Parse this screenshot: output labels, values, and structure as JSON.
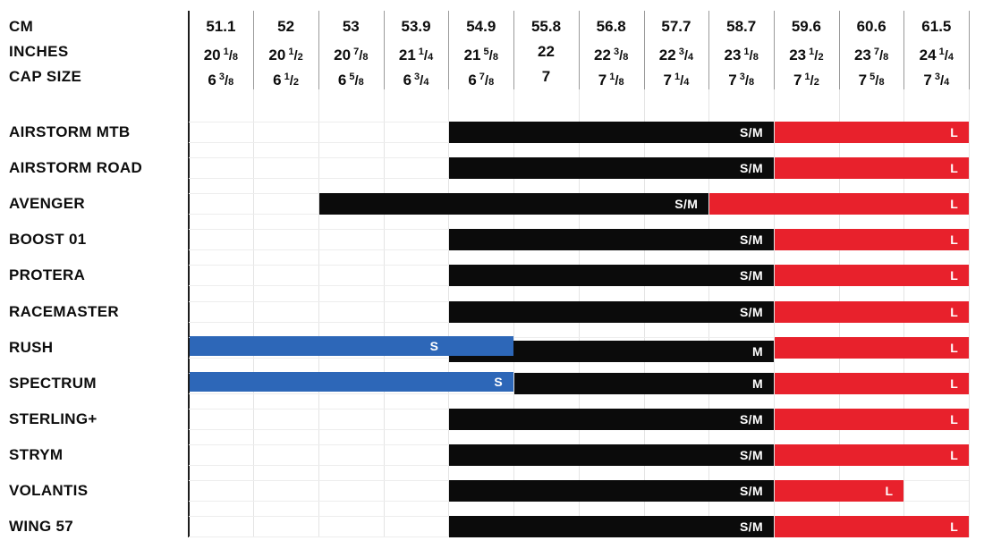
{
  "header": {
    "cm_label": "CM",
    "inches_label": "INCHES",
    "cap_size_label": "CAP SIZE"
  },
  "columns": [
    {
      "cm": "51.1",
      "inches": {
        "whole": "20",
        "num": "1",
        "den": "8"
      },
      "cap": {
        "whole": "6",
        "num": "3",
        "den": "8"
      }
    },
    {
      "cm": "52",
      "inches": {
        "whole": "20",
        "num": "1",
        "den": "2"
      },
      "cap": {
        "whole": "6",
        "num": "1",
        "den": "2"
      }
    },
    {
      "cm": "53",
      "inches": {
        "whole": "20",
        "num": "7",
        "den": "8"
      },
      "cap": {
        "whole": "6",
        "num": "5",
        "den": "8"
      }
    },
    {
      "cm": "53.9",
      "inches": {
        "whole": "21",
        "num": "1",
        "den": "4"
      },
      "cap": {
        "whole": "6",
        "num": "3",
        "den": "4"
      }
    },
    {
      "cm": "54.9",
      "inches": {
        "whole": "21",
        "num": "5",
        "den": "8"
      },
      "cap": {
        "whole": "6",
        "num": "7",
        "den": "8"
      }
    },
    {
      "cm": "55.8",
      "inches": {
        "whole": "22"
      },
      "cap": {
        "whole": "7"
      }
    },
    {
      "cm": "56.8",
      "inches": {
        "whole": "22",
        "num": "3",
        "den": "8"
      },
      "cap": {
        "whole": "7",
        "num": "1",
        "den": "8"
      }
    },
    {
      "cm": "57.7",
      "inches": {
        "whole": "22",
        "num": "3",
        "den": "4"
      },
      "cap": {
        "whole": "7",
        "num": "1",
        "den": "4"
      }
    },
    {
      "cm": "58.7",
      "inches": {
        "whole": "23",
        "num": "1",
        "den": "8"
      },
      "cap": {
        "whole": "7",
        "num": "3",
        "den": "8"
      }
    },
    {
      "cm": "59.6",
      "inches": {
        "whole": "23",
        "num": "1",
        "den": "2"
      },
      "cap": {
        "whole": "7",
        "num": "1",
        "den": "2"
      }
    },
    {
      "cm": "60.6",
      "inches": {
        "whole": "23",
        "num": "7",
        "den": "8"
      },
      "cap": {
        "whole": "7",
        "num": "5",
        "den": "8"
      }
    },
    {
      "cm": "61.5",
      "inches": {
        "whole": "24",
        "num": "1",
        "den": "4"
      },
      "cap": {
        "whole": "7",
        "num": "3",
        "den": "4"
      }
    }
  ],
  "colors": {
    "black": "#0b0b0b",
    "red": "#e8212c",
    "blue": "#2d67b8"
  },
  "rows": [
    {
      "model": "AIRSTORM MTB",
      "bars": [
        {
          "label": "S/M",
          "color": "black",
          "from": 4,
          "to": 9
        },
        {
          "label": "L",
          "color": "red",
          "from": 9,
          "to": 12
        }
      ]
    },
    {
      "model": "AIRSTORM ROAD",
      "bars": [
        {
          "label": "S/M",
          "color": "black",
          "from": 4,
          "to": 9
        },
        {
          "label": "L",
          "color": "red",
          "from": 9,
          "to": 12
        }
      ]
    },
    {
      "model": "AVENGER",
      "bars": [
        {
          "label": "S/M",
          "color": "black",
          "from": 2,
          "to": 8
        },
        {
          "label": "L",
          "color": "red",
          "from": 8,
          "to": 12
        }
      ]
    },
    {
      "model": "BOOST 01",
      "bars": [
        {
          "label": "S/M",
          "color": "black",
          "from": 4,
          "to": 9
        },
        {
          "label": "L",
          "color": "red",
          "from": 9,
          "to": 12
        }
      ]
    },
    {
      "model": "PROTERA",
      "bars": [
        {
          "label": "S/M",
          "color": "black",
          "from": 4,
          "to": 9
        },
        {
          "label": "L",
          "color": "red",
          "from": 9,
          "to": 12
        }
      ]
    },
    {
      "model": "RACEMASTER",
      "bars": [
        {
          "label": "S/M",
          "color": "black",
          "from": 4,
          "to": 9
        },
        {
          "label": "L",
          "color": "red",
          "from": 9,
          "to": 12
        }
      ]
    },
    {
      "model": "RUSH",
      "bars": [
        {
          "label": "M",
          "color": "black",
          "from": 4,
          "to": 9,
          "overlap": true
        },
        {
          "label": "S",
          "color": "blue",
          "from": 0,
          "to": 5,
          "label_to": 4
        },
        {
          "label": "L",
          "color": "red",
          "from": 9,
          "to": 12
        }
      ]
    },
    {
      "model": "SPECTRUM",
      "bars": [
        {
          "label": "S",
          "color": "blue",
          "from": 0,
          "to": 5
        },
        {
          "label": "M",
          "color": "black",
          "from": 5,
          "to": 9
        },
        {
          "label": "L",
          "color": "red",
          "from": 9,
          "to": 12
        }
      ]
    },
    {
      "model": "STERLING+",
      "bars": [
        {
          "label": "S/M",
          "color": "black",
          "from": 4,
          "to": 9
        },
        {
          "label": "L",
          "color": "red",
          "from": 9,
          "to": 12
        }
      ]
    },
    {
      "model": "STRYM",
      "bars": [
        {
          "label": "S/M",
          "color": "black",
          "from": 4,
          "to": 9
        },
        {
          "label": "L",
          "color": "red",
          "from": 9,
          "to": 12
        }
      ]
    },
    {
      "model": "VOLANTIS",
      "bars": [
        {
          "label": "S/M",
          "color": "black",
          "from": 4,
          "to": 9
        },
        {
          "label": "L",
          "color": "red",
          "from": 9,
          "to": 11
        }
      ]
    },
    {
      "model": "WING 57",
      "bars": [
        {
          "label": "S/M",
          "color": "black",
          "from": 4,
          "to": 9
        },
        {
          "label": "L",
          "color": "red",
          "from": 9,
          "to": 12
        }
      ]
    }
  ],
  "chart_data": {
    "type": "bar",
    "subtype": "horizontal-size-range",
    "title": "Helmet size chart",
    "axis": {
      "cm": [
        51.1,
        52,
        53,
        53.9,
        54.9,
        55.8,
        56.8,
        57.7,
        58.7,
        59.6,
        60.6,
        61.5
      ],
      "inches": [
        "20 1/8",
        "20 1/2",
        "20 7/8",
        "21 1/4",
        "21 5/8",
        "22",
        "22 3/8",
        "22 3/4",
        "23 1/8",
        "23 1/2",
        "23 7/8",
        "24 1/4"
      ],
      "cap_size": [
        "6 3/8",
        "6 1/2",
        "6 5/8",
        "6 3/4",
        "6 7/8",
        "7",
        "7 1/8",
        "7 1/4",
        "7 3/8",
        "7 1/2",
        "7 5/8",
        "7 3/4"
      ]
    },
    "legend": {
      "S": "blue",
      "M": "black",
      "S/M": "black",
      "L": "red"
    },
    "models": [
      {
        "name": "AIRSTORM MTB",
        "ranges": [
          {
            "size": "S/M",
            "cm_from": 54.9,
            "cm_to": 58.7
          },
          {
            "size": "L",
            "cm_from": 59.6,
            "cm_to": 61.5
          }
        ]
      },
      {
        "name": "AIRSTORM ROAD",
        "ranges": [
          {
            "size": "S/M",
            "cm_from": 54.9,
            "cm_to": 58.7
          },
          {
            "size": "L",
            "cm_from": 59.6,
            "cm_to": 61.5
          }
        ]
      },
      {
        "name": "AVENGER",
        "ranges": [
          {
            "size": "S/M",
            "cm_from": 53.0,
            "cm_to": 57.7
          },
          {
            "size": "L",
            "cm_from": 58.7,
            "cm_to": 61.5
          }
        ]
      },
      {
        "name": "BOOST 01",
        "ranges": [
          {
            "size": "S/M",
            "cm_from": 54.9,
            "cm_to": 58.7
          },
          {
            "size": "L",
            "cm_from": 59.6,
            "cm_to": 61.5
          }
        ]
      },
      {
        "name": "PROTERA",
        "ranges": [
          {
            "size": "S/M",
            "cm_from": 54.9,
            "cm_to": 58.7
          },
          {
            "size": "L",
            "cm_from": 59.6,
            "cm_to": 61.5
          }
        ]
      },
      {
        "name": "RACEMASTER",
        "ranges": [
          {
            "size": "S/M",
            "cm_from": 54.9,
            "cm_to": 58.7
          },
          {
            "size": "L",
            "cm_from": 59.6,
            "cm_to": 61.5
          }
        ]
      },
      {
        "name": "RUSH",
        "ranges": [
          {
            "size": "S",
            "cm_from": 51.1,
            "cm_to": 54.9
          },
          {
            "size": "M",
            "cm_from": 54.9,
            "cm_to": 58.7
          },
          {
            "size": "L",
            "cm_from": 59.6,
            "cm_to": 61.5
          }
        ]
      },
      {
        "name": "SPECTRUM",
        "ranges": [
          {
            "size": "S",
            "cm_from": 51.1,
            "cm_to": 54.9
          },
          {
            "size": "M",
            "cm_from": 55.8,
            "cm_to": 58.7
          },
          {
            "size": "L",
            "cm_from": 59.6,
            "cm_to": 61.5
          }
        ]
      },
      {
        "name": "STERLING+",
        "ranges": [
          {
            "size": "S/M",
            "cm_from": 54.9,
            "cm_to": 58.7
          },
          {
            "size": "L",
            "cm_from": 59.6,
            "cm_to": 61.5
          }
        ]
      },
      {
        "name": "STRYM",
        "ranges": [
          {
            "size": "S/M",
            "cm_from": 54.9,
            "cm_to": 58.7
          },
          {
            "size": "L",
            "cm_from": 59.6,
            "cm_to": 61.5
          }
        ]
      },
      {
        "name": "VOLANTIS",
        "ranges": [
          {
            "size": "S/M",
            "cm_from": 54.9,
            "cm_to": 58.7
          },
          {
            "size": "L",
            "cm_from": 59.6,
            "cm_to": 60.6
          }
        ]
      },
      {
        "name": "WING 57",
        "ranges": [
          {
            "size": "S/M",
            "cm_from": 54.9,
            "cm_to": 58.7
          },
          {
            "size": "L",
            "cm_from": 59.6,
            "cm_to": 61.5
          }
        ]
      }
    ]
  }
}
